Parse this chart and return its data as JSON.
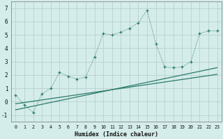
{
  "xlabel": "Humidex (Indice chaleur)",
  "background_color": "#d4ecea",
  "grid_color": "#b8d0ce",
  "line_color": "#2a7a6a",
  "xlim": [
    -0.5,
    23.5
  ],
  "ylim": [
    -1.5,
    7.5
  ],
  "yticks": [
    -1,
    0,
    1,
    2,
    3,
    4,
    5,
    6,
    7
  ],
  "xticks": [
    0,
    1,
    2,
    3,
    4,
    5,
    6,
    7,
    8,
    9,
    10,
    11,
    12,
    13,
    14,
    15,
    16,
    17,
    18,
    19,
    20,
    21,
    22,
    23
  ],
  "series1_x": [
    0,
    1,
    2,
    3,
    4,
    5,
    6,
    7,
    8,
    9,
    10,
    11,
    12,
    13,
    14,
    15,
    16,
    17,
    18,
    19,
    20,
    21,
    22,
    23
  ],
  "series1_y": [
    0.5,
    -0.25,
    -0.8,
    0.6,
    1.0,
    2.2,
    1.9,
    1.7,
    1.85,
    3.35,
    5.1,
    5.0,
    5.2,
    5.5,
    5.9,
    6.85,
    4.35,
    2.6,
    2.55,
    2.6,
    3.0,
    5.1,
    5.3,
    5.3
  ],
  "series2_x": [
    0,
    23
  ],
  "series2_y": [
    -0.6,
    2.55
  ],
  "series3_x": [
    0,
    23
  ],
  "series3_y": [
    -0.15,
    2.05
  ]
}
